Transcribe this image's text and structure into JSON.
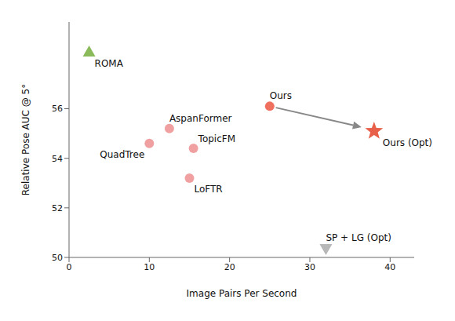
{
  "chart_data": {
    "type": "scatter",
    "xlabel": "Image Pairs Per Second",
    "ylabel": "Relative Pose AUC @ 5°",
    "xlim": [
      0,
      43
    ],
    "ylim": [
      50,
      59.5
    ],
    "xticks": [
      0,
      10,
      20,
      30,
      40
    ],
    "yticks": [
      50,
      52,
      54,
      56
    ],
    "series": [
      {
        "name": "ROMA",
        "color": "#8aba5a",
        "marker": "triangle-up",
        "x": [
          2.5
        ],
        "values": [
          58.3
        ]
      },
      {
        "name": "Ours",
        "color": "#f07060",
        "marker": "circle",
        "x": [
          25.0
        ],
        "values": [
          56.1
        ]
      },
      {
        "name": "Ours (Opt)",
        "color": "#e8604a",
        "marker": "star",
        "x": [
          38.0
        ],
        "values": [
          55.1
        ]
      },
      {
        "name": "AspanFormer",
        "color": "#f0a0a0",
        "marker": "circle",
        "x": [
          12.5
        ],
        "values": [
          55.2
        ]
      },
      {
        "name": "TopicFM",
        "color": "#f0a0a0",
        "marker": "circle",
        "x": [
          15.5
        ],
        "values": [
          54.4
        ]
      },
      {
        "name": "QuadTree",
        "color": "#f0a0a0",
        "marker": "circle",
        "x": [
          10.0
        ],
        "values": [
          54.6
        ]
      },
      {
        "name": "LoFTR",
        "color": "#f0a0a0",
        "marker": "circle",
        "x": [
          15.0
        ],
        "values": [
          53.2
        ]
      },
      {
        "name": "SP + LG (Opt)",
        "color": "#b8b8b8",
        "marker": "triangle-down",
        "x": [
          32.0
        ],
        "values": [
          50.35
        ]
      }
    ],
    "annotations": [
      {
        "type": "arrow",
        "x1": 25.0,
        "y1": 56.1,
        "x2": 37.2,
        "y2": 55.2,
        "color": "#888888"
      }
    ]
  }
}
